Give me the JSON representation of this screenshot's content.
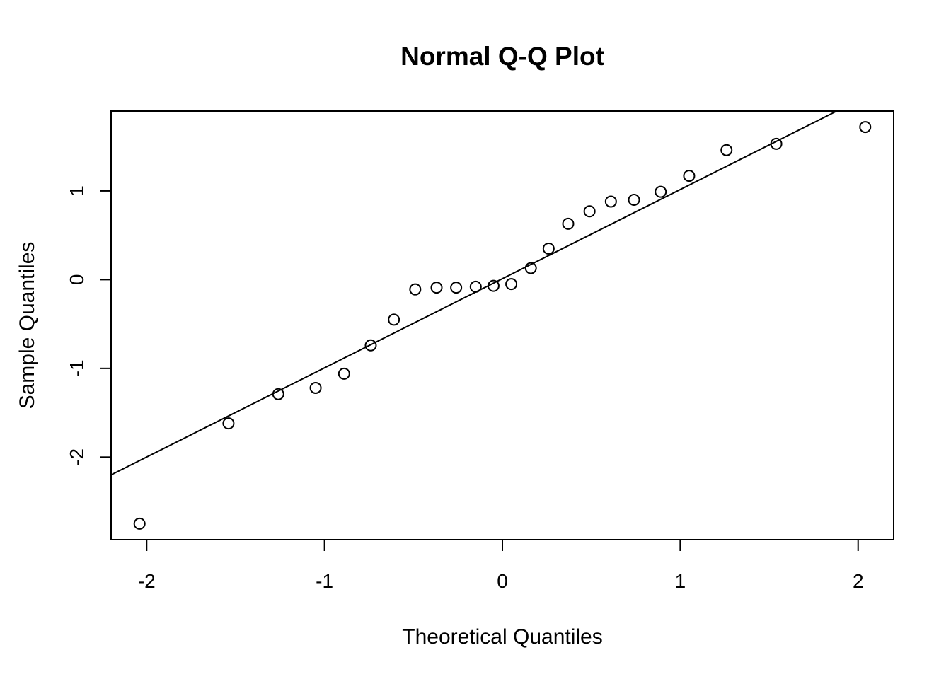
{
  "chart_data": {
    "type": "scatter",
    "title": "Normal Q-Q Plot",
    "xlabel": "Theoretical Quantiles",
    "ylabel": "Sample Quantiles",
    "xlim": [
      -2.2,
      2.2
    ],
    "ylim": [
      -2.93,
      1.9
    ],
    "x_ticks": [
      -2,
      -1,
      0,
      1,
      2
    ],
    "x_tick_labels": [
      "-2",
      "-1",
      "0",
      "1",
      "2"
    ],
    "y_ticks": [
      -2,
      -1,
      0,
      1
    ],
    "y_tick_labels": [
      "-2",
      "-1",
      "0",
      "1"
    ],
    "grid": false,
    "legend": "none",
    "points": [
      {
        "x": -2.04,
        "y": -2.75
      },
      {
        "x": -1.54,
        "y": -1.62
      },
      {
        "x": -1.26,
        "y": -1.29
      },
      {
        "x": -1.05,
        "y": -1.22
      },
      {
        "x": -0.89,
        "y": -1.06
      },
      {
        "x": -0.74,
        "y": -0.74
      },
      {
        "x": -0.61,
        "y": -0.45
      },
      {
        "x": -0.49,
        "y": -0.11
      },
      {
        "x": -0.37,
        "y": -0.09
      },
      {
        "x": -0.26,
        "y": -0.09
      },
      {
        "x": -0.15,
        "y": -0.08
      },
      {
        "x": -0.05,
        "y": -0.07
      },
      {
        "x": 0.05,
        "y": -0.05
      },
      {
        "x": 0.16,
        "y": 0.13
      },
      {
        "x": 0.26,
        "y": 0.35
      },
      {
        "x": 0.37,
        "y": 0.63
      },
      {
        "x": 0.49,
        "y": 0.77
      },
      {
        "x": 0.61,
        "y": 0.88
      },
      {
        "x": 0.74,
        "y": 0.9
      },
      {
        "x": 0.89,
        "y": 0.99
      },
      {
        "x": 1.05,
        "y": 1.17
      },
      {
        "x": 1.26,
        "y": 1.46
      },
      {
        "x": 1.54,
        "y": 1.53
      },
      {
        "x": 2.04,
        "y": 1.72
      }
    ],
    "reference_line": {
      "x1": -2.2,
      "y1": -2.2,
      "x2": 1.88,
      "y2": 1.9
    }
  }
}
